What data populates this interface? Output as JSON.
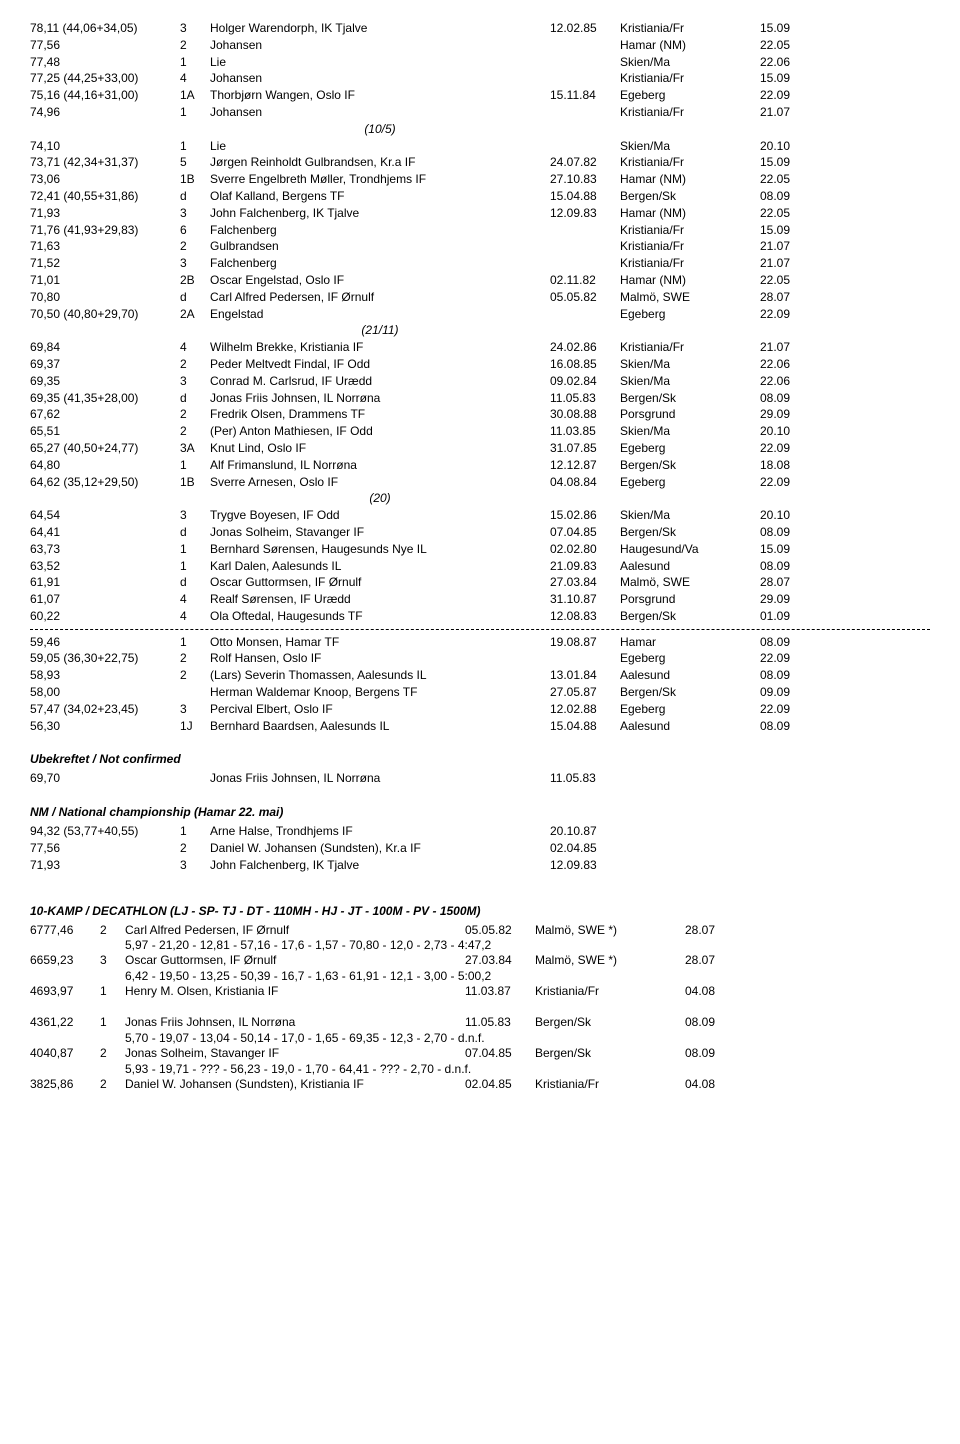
{
  "rows": [
    {
      "c1": "78,11 (44,06+34,05)",
      "c2": "3",
      "c3": "Holger Warendorph, IK Tjalve",
      "c4": "12.02.85",
      "c5": "Kristiania/Fr",
      "c6": "15.09"
    },
    {
      "c1": "77,56",
      "c2": "2",
      "c3": "Johansen",
      "c4": "",
      "c5": "Hamar (NM)",
      "c6": "22.05"
    },
    {
      "c1": "77,48",
      "c2": "1",
      "c3": "Lie",
      "c4": "",
      "c5": "Skien/Ma",
      "c6": "22.06"
    },
    {
      "c1": "77,25 (44,25+33,00)",
      "c2": "4",
      "c3": "Johansen",
      "c4": "",
      "c5": "Kristiania/Fr",
      "c6": "15.09"
    },
    {
      "c1": "75,16 (44,16+31,00)",
      "c2": "1A",
      "c3": "Thorbjørn Wangen, Oslo IF",
      "c4": "15.11.84",
      "c5": "Egeberg",
      "c6": "22.09"
    },
    {
      "c1": "74,96",
      "c2": "1",
      "c3": "Johansen",
      "c4": "",
      "c5": "Kristiania/Fr",
      "c6": "21.07"
    },
    {
      "note": "(10/5)"
    },
    {
      "c1": "74,10",
      "c2": "1",
      "c3": "Lie",
      "c4": "",
      "c5": "Skien/Ma",
      "c6": "20.10"
    },
    {
      "c1": "73,71 (42,34+31,37)",
      "c2": "5",
      "c3": "Jørgen Reinholdt Gulbrandsen, Kr.a IF",
      "c4": "24.07.82",
      "c5": "Kristiania/Fr",
      "c6": "15.09"
    },
    {
      "c1": "73,06",
      "c2": "1B",
      "c3": "Sverre Engelbreth Møller, Trondhjems IF",
      "c4": "27.10.83",
      "c5": "Hamar (NM)",
      "c6": "22.05"
    },
    {
      "c1": "72,41 (40,55+31,86)",
      "c2": "d",
      "c3": "Olaf Kalland, Bergens TF",
      "c4": "15.04.88",
      "c5": "Bergen/Sk",
      "c6": "08.09"
    },
    {
      "c1": "71,93",
      "c2": "3",
      "c3": "John Falchenberg, IK Tjalve",
      "c4": "12.09.83",
      "c5": "Hamar (NM)",
      "c6": "22.05"
    },
    {
      "c1": "71,76 (41,93+29,83)",
      "c2": "6",
      "c3": "Falchenberg",
      "c4": "",
      "c5": "Kristiania/Fr",
      "c6": "15.09"
    },
    {
      "c1": "71,63",
      "c2": "2",
      "c3": "Gulbrandsen",
      "c4": "",
      "c5": "Kristiania/Fr",
      "c6": "21.07"
    },
    {
      "c1": "71,52",
      "c2": "3",
      "c3": "Falchenberg",
      "c4": "",
      "c5": "Kristiania/Fr",
      "c6": "21.07"
    },
    {
      "c1": "71,01",
      "c2": "2B",
      "c3": "Oscar Engelstad, Oslo IF",
      "c4": "02.11.82",
      "c5": "Hamar (NM)",
      "c6": "22.05"
    },
    {
      "c1": "70,80",
      "c2": "d",
      "c3": "Carl Alfred Pedersen, IF Ørnulf",
      "c4": "05.05.82",
      "c5": "Malmö, SWE",
      "c6": "28.07"
    },
    {
      "c1": "70,50 (40,80+29,70)",
      "c2": "2A",
      "c3": "Engelstad",
      "c4": "",
      "c5": "Egeberg",
      "c6": "22.09"
    },
    {
      "note": "(21/11)"
    },
    {
      "c1": "69,84",
      "c2": "4",
      "c3": "Wilhelm Brekke, Kristiania IF",
      "c4": "24.02.86",
      "c5": "Kristiania/Fr",
      "c6": "21.07"
    },
    {
      "c1": "69,37",
      "c2": "2",
      "c3": "Peder Meltvedt Findal, IF Odd",
      "c4": "16.08.85",
      "c5": "Skien/Ma",
      "c6": "22.06"
    },
    {
      "c1": "69,35",
      "c2": "3",
      "c3": "Conrad M. Carlsrud, IF Urædd",
      "c4": "09.02.84",
      "c5": "Skien/Ma",
      "c6": "22.06"
    },
    {
      "c1": "69,35 (41,35+28,00)",
      "c2": "d",
      "c3": "Jonas Friis Johnsen, IL Norrøna",
      "c4": "11.05.83",
      "c5": "Bergen/Sk",
      "c6": "08.09"
    },
    {
      "c1": "67,62",
      "c2": "2",
      "c3": "Fredrik Olsen, Drammens TF",
      "c4": "30.08.88",
      "c5": "Porsgrund",
      "c6": "29.09"
    },
    {
      "c1": "65,51",
      "c2": "2",
      "c3": "(Per) Anton Mathiesen, IF Odd",
      "c4": "11.03.85",
      "c5": "Skien/Ma",
      "c6": "20.10"
    },
    {
      "c1": "65,27 (40,50+24,77)",
      "c2": "3A",
      "c3": "Knut Lind, Oslo IF",
      "c4": "31.07.85",
      "c5": "Egeberg",
      "c6": "22.09"
    },
    {
      "c1": "64,80",
      "c2": "1",
      "c3": "Alf Frimanslund, IL Norrøna",
      "c4": "12.12.87",
      "c5": "Bergen/Sk",
      "c6": "18.08"
    },
    {
      "c1": "64,62 (35,12+29,50)",
      "c2": "1B",
      "c3": "Sverre Arnesen, Oslo IF",
      "c4": "04.08.84",
      "c5": "Egeberg",
      "c6": "22.09"
    },
    {
      "note": "(20)"
    },
    {
      "c1": "64,54",
      "c2": "3",
      "c3": "Trygve Boyesen, IF Odd",
      "c4": "15.02.86",
      "c5": "Skien/Ma",
      "c6": "20.10"
    },
    {
      "c1": "64,41",
      "c2": "d",
      "c3": "Jonas Solheim, Stavanger IF",
      "c4": "07.04.85",
      "c5": "Bergen/Sk",
      "c6": "08.09"
    },
    {
      "c1": "63,73",
      "c2": "1",
      "c3": "Bernhard Sørensen, Haugesunds Nye IL",
      "c4": "02.02.80",
      "c5": "Haugesund/Va",
      "c6": "15.09"
    },
    {
      "c1": "63,52",
      "c2": "1",
      "c3": "Karl Dalen, Aalesunds IL",
      "c4": "21.09.83",
      "c5": "Aalesund",
      "c6": "08.09"
    },
    {
      "c1": "61,91",
      "c2": "d",
      "c3": "Oscar Guttormsen, IF Ørnulf",
      "c4": "27.03.84",
      "c5": "Malmö, SWE",
      "c6": "28.07"
    },
    {
      "c1": "61,07",
      "c2": "4",
      "c3": "Realf Sørensen, IF Urædd",
      "c4": "31.10.87",
      "c5": "Porsgrund",
      "c6": "29.09"
    },
    {
      "c1": "60,22",
      "c2": "4",
      "c3": "Ola Oftedal, Haugesunds TF",
      "c4": "12.08.83",
      "c5": "Bergen/Sk",
      "c6": "01.09"
    },
    {
      "divider": true
    },
    {
      "c1": "59,46",
      "c2": "1",
      "c3": "Otto Monsen, Hamar TF",
      "c4": "19.08.87",
      "c5": "Hamar",
      "c6": "08.09"
    },
    {
      "c1": "59,05 (36,30+22,75)",
      "c2": "2",
      "c3": "Rolf Hansen, Oslo IF",
      "c4": "",
      "c5": "Egeberg",
      "c6": "22.09"
    },
    {
      "c1": "58,93",
      "c2": "2",
      "c3": "(Lars) Severin Thomassen, Aalesunds IL",
      "c4": "13.01.84",
      "c5": "Aalesund",
      "c6": "08.09"
    },
    {
      "c1": "58,00",
      "c2": "",
      "c3": "Herman Waldemar Knoop, Bergens TF",
      "c4": "27.05.87",
      "c5": "Bergen/Sk",
      "c6": "09.09"
    },
    {
      "c1": "57,47 (34,02+23,45)",
      "c2": "3",
      "c3": "Percival Elbert, Oslo IF",
      "c4": "12.02.88",
      "c5": "Egeberg",
      "c6": "22.09"
    },
    {
      "c1": "56,30",
      "c2": "1J",
      "c3": "Bernhard Baardsen, Aalesunds IL",
      "c4": "15.04.88",
      "c5": "Aalesund",
      "c6": "08.09"
    }
  ],
  "unconfirmed": {
    "header": "Ubekreftet / Not confirmed",
    "row": {
      "c1": "69,70",
      "c2": "",
      "c3": "Jonas Friis Johnsen, IL Norrøna",
      "c4": "11.05.83",
      "c5": "",
      "c6": ""
    }
  },
  "nm": {
    "header": "NM / National championship (Hamar 22. mai)",
    "rows": [
      {
        "c1": "94,32 (53,77+40,55)",
        "c2": "1",
        "c3": "Arne Halse, Trondhjems IF",
        "c4": "20.10.87"
      },
      {
        "c1": "77,56",
        "c2": "2",
        "c3": "Daniel W. Johansen (Sundsten), Kr.a IF",
        "c4": "02.04.85"
      },
      {
        "c1": "71,93",
        "c2": "3",
        "c3": "John Falchenberg, IK Tjalve",
        "c4": "12.09.83"
      }
    ]
  },
  "decathlon": {
    "header": "10-KAMP / DECATHLON (LJ - SP- TJ - DT - 110MH - HJ - JT - 100M - PV - 1500M)",
    "rows": [
      {
        "d1": "6777,46",
        "d2": "2",
        "d3": "Carl Alfred Pedersen, IF Ørnulf",
        "d4": "05.05.82",
        "d5": "Malmö, SWE *)",
        "d6": "28.07",
        "sub": "5,97 - 21,20 - 12,81 - 57,16 - 17,6 - 1,57 - 70,80 - 12,0 - 2,73 - 4:47,2"
      },
      {
        "d1": "6659,23",
        "d2": "3",
        "d3": "Oscar Guttormsen, IF Ørnulf",
        "d4": "27.03.84",
        "d5": "Malmö, SWE *)",
        "d6": "28.07",
        "sub": "6,42 - 19,50 - 13,25 - 50,39 - 16,7 - 1,63 - 61,91 - 12,1 - 3,00 - 5:00,2"
      },
      {
        "d1": "4693,97",
        "d2": "1",
        "d3": "Henry M. Olsen, Kristiania IF",
        "d4": "11.03.87",
        "d5": "Kristiania/Fr",
        "d6": "04.08",
        "sub": ""
      },
      {
        "gap": true
      },
      {
        "d1": "4361,22",
        "d2": "1",
        "d3": "Jonas Friis Johnsen, IL Norrøna",
        "d4": "11.05.83",
        "d5": "Bergen/Sk",
        "d6": "08.09",
        "sub": "5,70 - 19,07 - 13,04 - 50,14 - 17,0 - 1,65 - 69,35 - 12,3 - 2,70 - d.n.f."
      },
      {
        "d1": "4040,87",
        "d2": "2",
        "d3": "Jonas Solheim, Stavanger IF",
        "d4": "07.04.85",
        "d5": "Bergen/Sk",
        "d6": "08.09",
        "sub": "5,93 - 19,71 - ??? - 56,23 - 19,0 - 1,70 - 64,41 - ??? - 2,70 - d.n.f."
      },
      {
        "d1": "3825,86",
        "d2": "2",
        "d3": "Daniel W. Johansen (Sundsten), Kristiania IF",
        "d4": "02.04.85",
        "d5": "Kristiania/Fr",
        "d6": "04.08",
        "sub": ""
      }
    ]
  }
}
